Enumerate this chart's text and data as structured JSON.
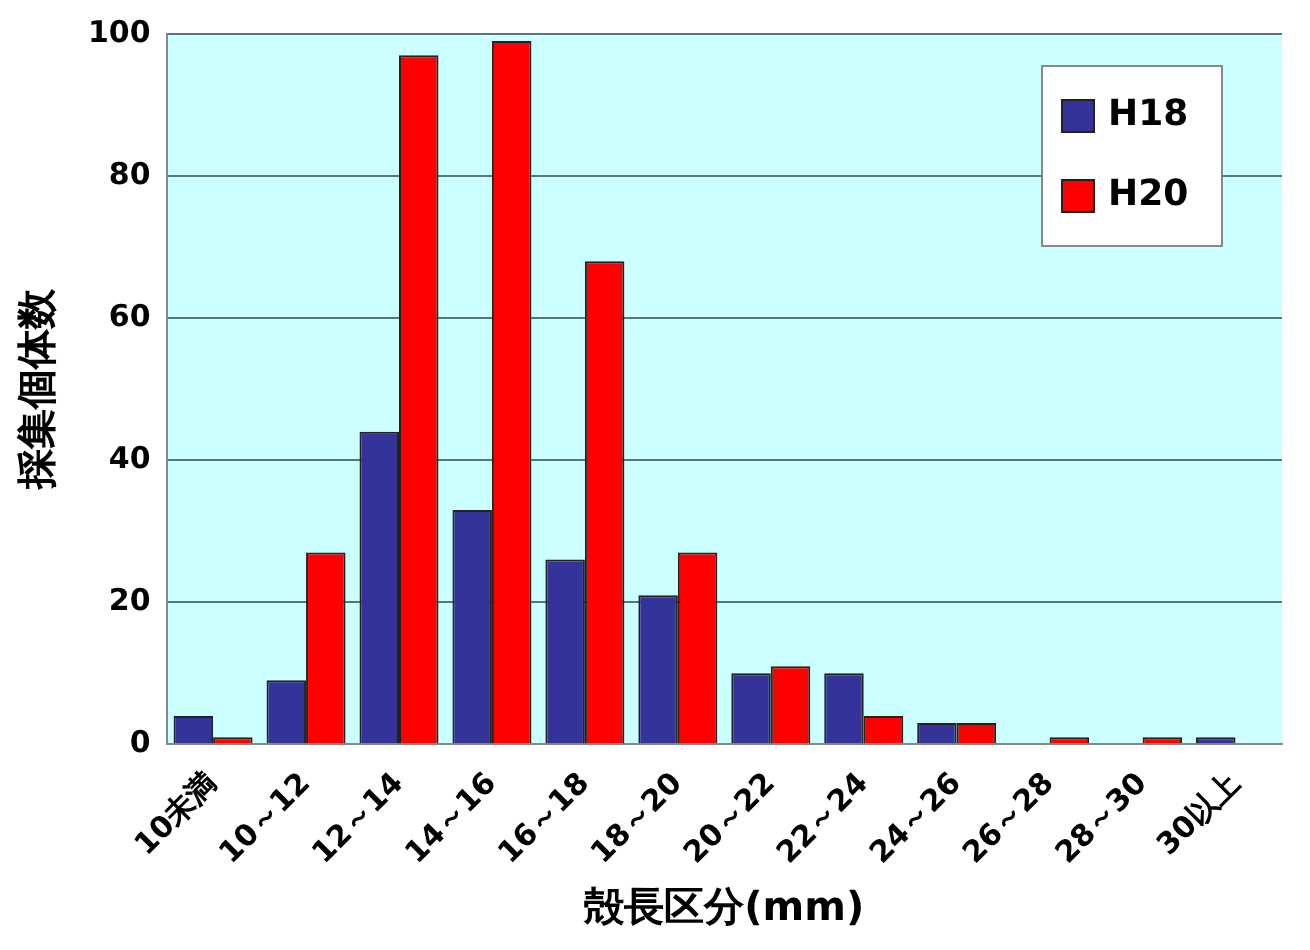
{
  "chart_data": {
    "type": "bar",
    "xlabel": "殻長区分(mm)",
    "ylabel": "採集個体数",
    "categories": [
      "10未満",
      "10～12",
      "12～14",
      "14～16",
      "16～18",
      "18～20",
      "20～22",
      "22～24",
      "24～26",
      "26～28",
      "28～30",
      "30以上"
    ],
    "series": [
      {
        "name": "H18",
        "color": "#333399",
        "values": [
          4,
          9,
          44,
          33,
          26,
          21,
          10,
          10,
          3,
          0,
          0,
          1
        ]
      },
      {
        "name": "H20",
        "color": "#ff0000",
        "values": [
          1,
          27,
          97,
          99,
          68,
          27,
          11,
          4,
          3,
          1,
          1,
          0
        ]
      }
    ],
    "ylim": [
      0,
      100
    ],
    "yticks": [
      0,
      20,
      40,
      60,
      80,
      100
    ],
    "grid": "y",
    "legend": "top right"
  }
}
